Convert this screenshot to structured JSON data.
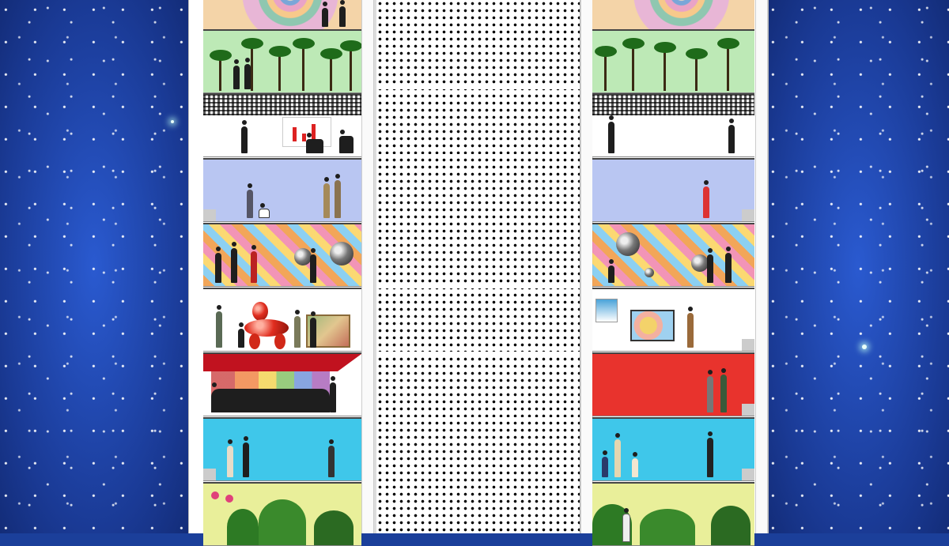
{
  "scene": {
    "description_label": "",
    "colors": {
      "sky": "#1b3f9a",
      "tower": "#ffffff",
      "palm_floor": "#bde9b6",
      "blue_floor": "#b9c6f2",
      "dance_floor": "#c1121f",
      "red_wall": "#e8332d",
      "cyan_floor": "#3fc7ea",
      "garden_floor": "#e9ef9a"
    }
  },
  "floors_left": [
    {
      "theme": "mandala"
    },
    {
      "theme": "palms"
    },
    {
      "theme": "office"
    },
    {
      "theme": "blue-walkway"
    },
    {
      "theme": "mosaic-balloons"
    },
    {
      "theme": "gallery-balloon-dog"
    },
    {
      "theme": "red-stage"
    },
    {
      "theme": "cyan-walkway"
    },
    {
      "theme": "garden"
    }
  ],
  "floors_right": [
    {
      "theme": "mandala"
    },
    {
      "theme": "palms"
    },
    {
      "theme": "office"
    },
    {
      "theme": "blue-walkway"
    },
    {
      "theme": "mosaic-balloons"
    },
    {
      "theme": "gallery-popart"
    },
    {
      "theme": "red-wall"
    },
    {
      "theme": "cyan-walkway"
    },
    {
      "theme": "garden"
    }
  ]
}
